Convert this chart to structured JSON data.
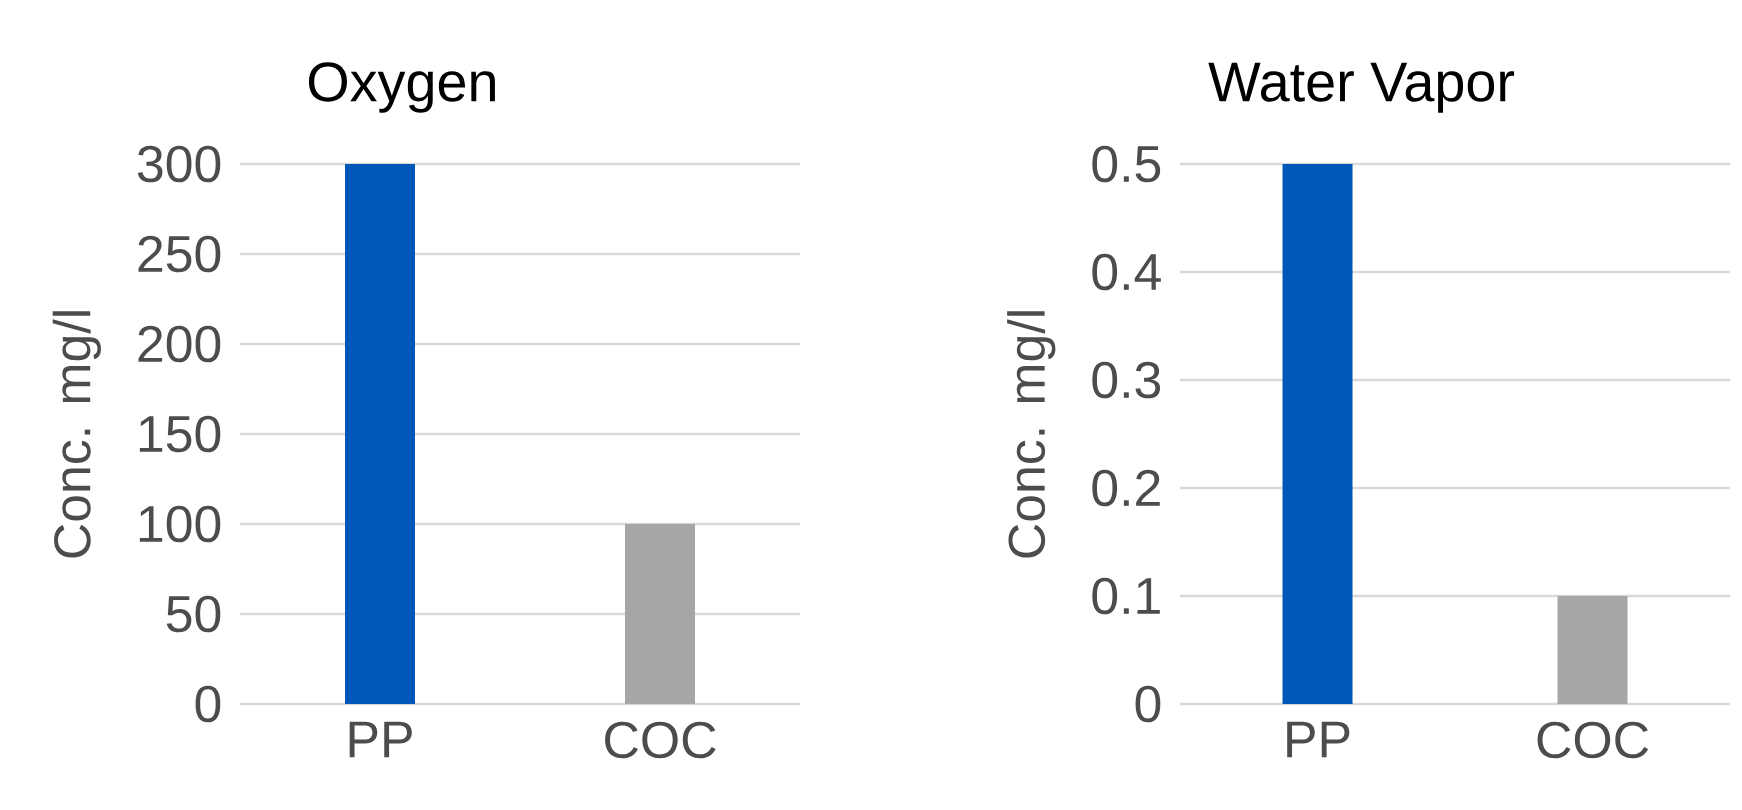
{
  "chart_data": [
    {
      "type": "bar",
      "title": "Oxygen",
      "ylabel": "Conc. mg/l",
      "categories": [
        "PP",
        "COC"
      ],
      "values": [
        300,
        100
      ],
      "colors": [
        "#0057b8",
        "#a6a6a6"
      ],
      "ylim": [
        0,
        300
      ],
      "yticks": [
        0,
        50,
        100,
        150,
        200,
        250,
        300
      ],
      "grid": "y"
    },
    {
      "type": "bar",
      "title": "Water Vapor",
      "ylabel": "Conc. mg/l",
      "categories": [
        "PP",
        "COC"
      ],
      "values": [
        0.5,
        0.1
      ],
      "colors": [
        "#0057b8",
        "#a6a6a6"
      ],
      "ylim": [
        0,
        0.5
      ],
      "yticks": [
        0,
        0.1,
        0.2,
        0.3,
        0.4,
        0.5
      ],
      "grid": "y"
    }
  ]
}
